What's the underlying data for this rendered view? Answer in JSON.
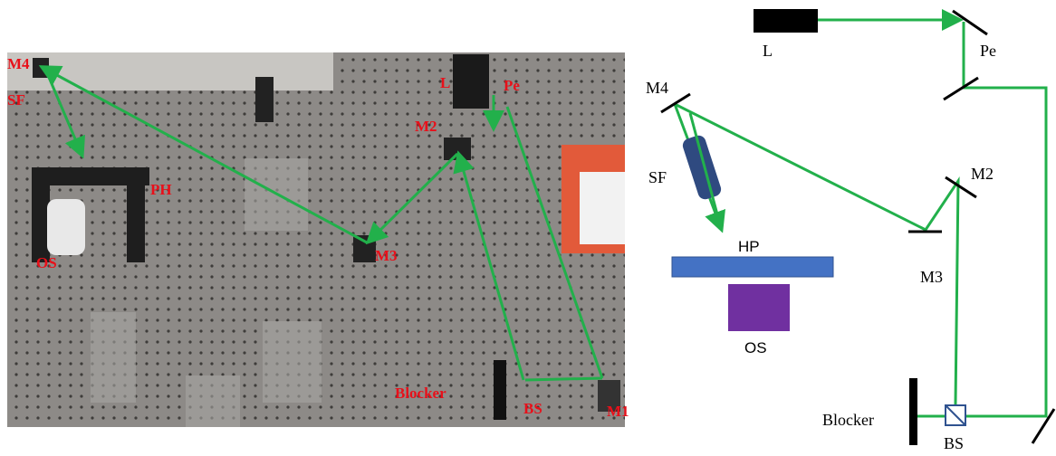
{
  "photo": {
    "labels": [
      "M4",
      "SF",
      "PH",
      "OS",
      "L",
      "Pe",
      "M2",
      "M3",
      "Blocker",
      "BS",
      "M1"
    ]
  },
  "diagram": {
    "labels": [
      "L",
      "Pe",
      "M4",
      "SF",
      "M2",
      "HP",
      "M3",
      "OS",
      "Blocker",
      "BS"
    ]
  }
}
